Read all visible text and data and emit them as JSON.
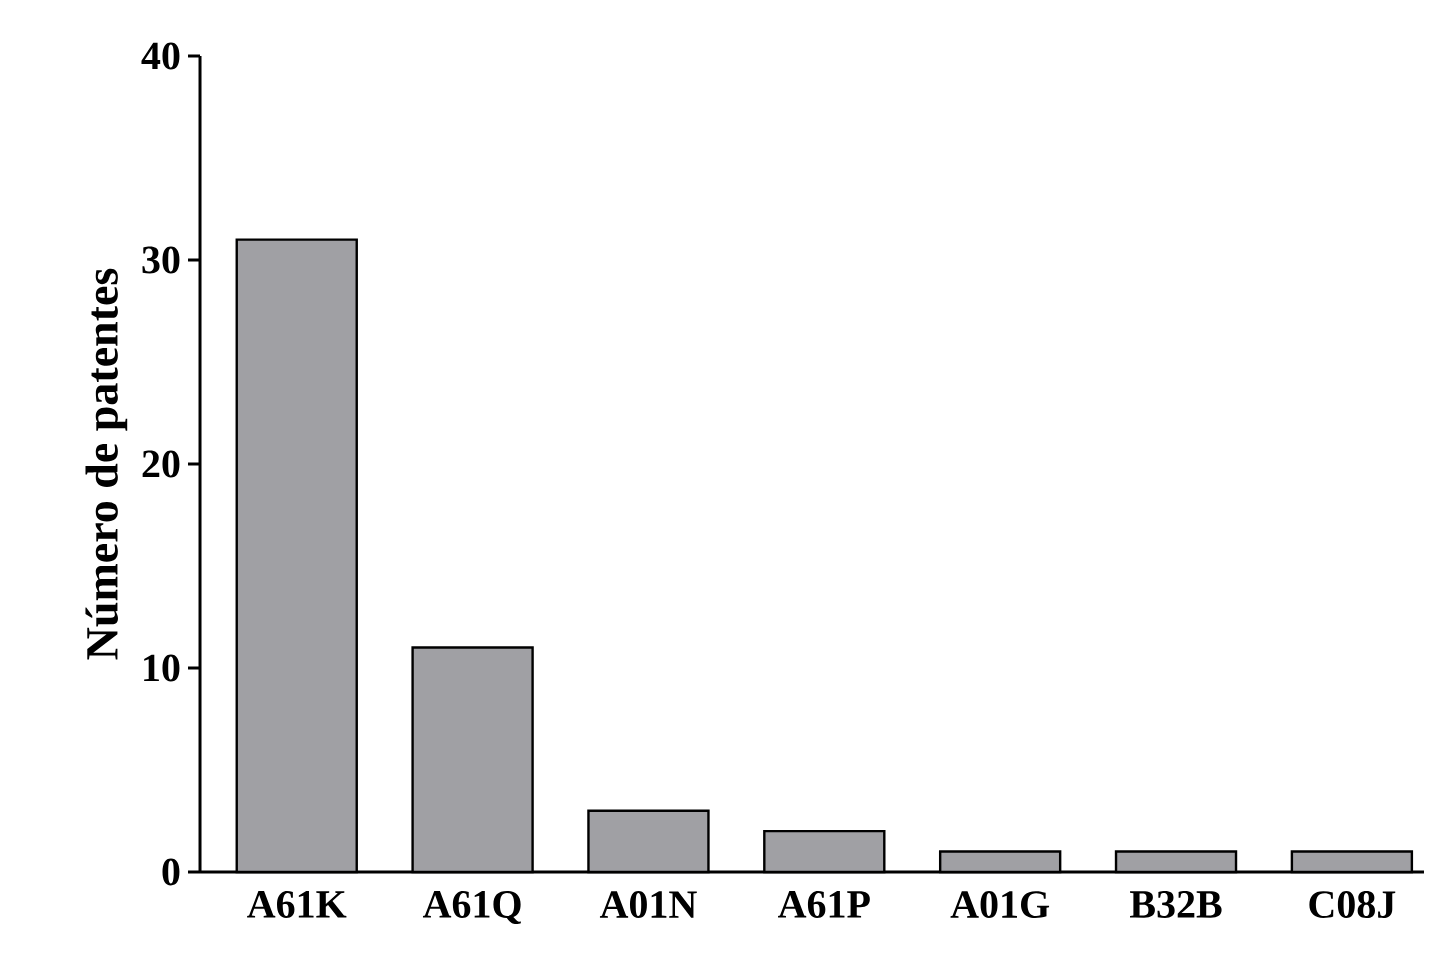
{
  "chart_data": {
    "type": "bar",
    "ylabel": "Número de patentes",
    "categories": [
      "A61K",
      "A61Q",
      "A01N",
      "A61P",
      "A01G",
      "B32B",
      "C08J"
    ],
    "values": [
      31,
      11,
      3,
      2,
      1,
      1,
      1
    ],
    "color": "#a0a0a4",
    "ylim": [
      0,
      40
    ],
    "yticks": [
      0,
      10,
      20,
      30,
      40
    ]
  }
}
